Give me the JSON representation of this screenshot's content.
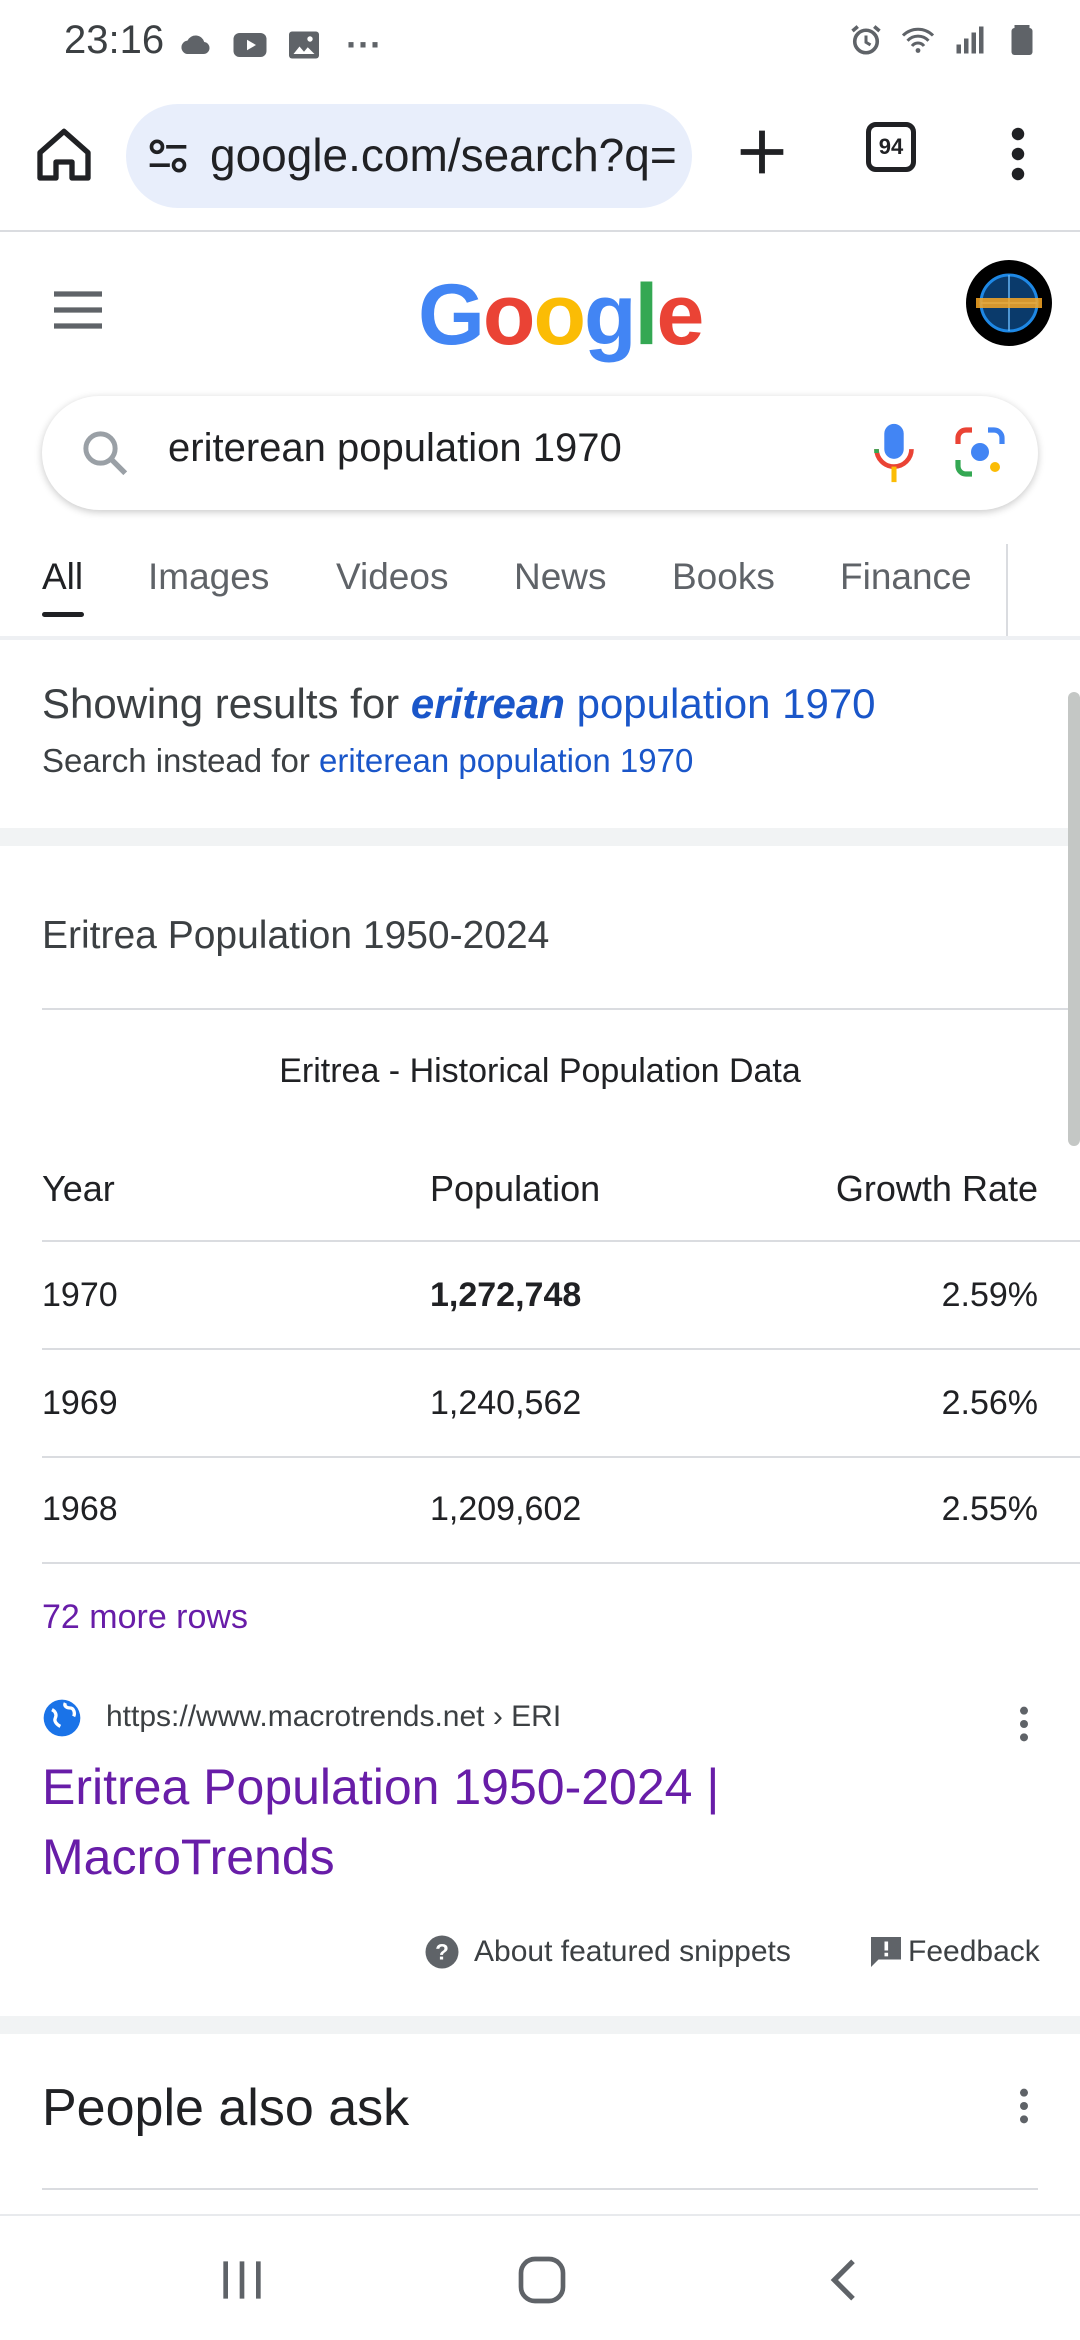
{
  "status_bar": {
    "time": "23:16",
    "more_glyph": "···"
  },
  "browser": {
    "url": "google.com/search?q=",
    "tab_count": "94"
  },
  "google": {
    "logo": [
      {
        "ch": "G",
        "color": "#4285F4"
      },
      {
        "ch": "o",
        "color": "#EA4335"
      },
      {
        "ch": "o",
        "color": "#FBBC05"
      },
      {
        "ch": "g",
        "color": "#4285F4"
      },
      {
        "ch": "l",
        "color": "#34A853"
      },
      {
        "ch": "e",
        "color": "#EA4335"
      }
    ]
  },
  "search": {
    "query": "eriterean population 1970"
  },
  "tabs": [
    {
      "label": "All",
      "active": true
    },
    {
      "label": "Images"
    },
    {
      "label": "Videos"
    },
    {
      "label": "News"
    },
    {
      "label": "Books"
    },
    {
      "label": "Finance"
    }
  ],
  "spelling": {
    "showing_prefix": "Showing results for ",
    "corrected_word": "eritrean",
    "corrected_rest": " population 1970",
    "instead_prefix": "Search instead for ",
    "original_query": "eriterean population 1970"
  },
  "snippet": {
    "heading": "Eritrea Population 1950-2024",
    "table_caption": "Eritrea - Historical Population Data",
    "columns": [
      "Year",
      "Population",
      "Growth Rate"
    ],
    "rows": [
      {
        "year": "1970",
        "population": "1,272,748",
        "growth": "2.59%"
      },
      {
        "year": "1969",
        "population": "1,240,562",
        "growth": "2.56%"
      },
      {
        "year": "1968",
        "population": "1,209,602",
        "growth": "2.55%"
      }
    ],
    "more_rows": "72 more rows",
    "source_url": "https://www.macrotrends.net › ERI",
    "result_title": "Eritrea Population 1950-2024 | MacroTrends",
    "about_label": "About featured snippets",
    "feedback_label": "Feedback"
  },
  "people_also_ask": {
    "heading": "People also ask"
  }
}
